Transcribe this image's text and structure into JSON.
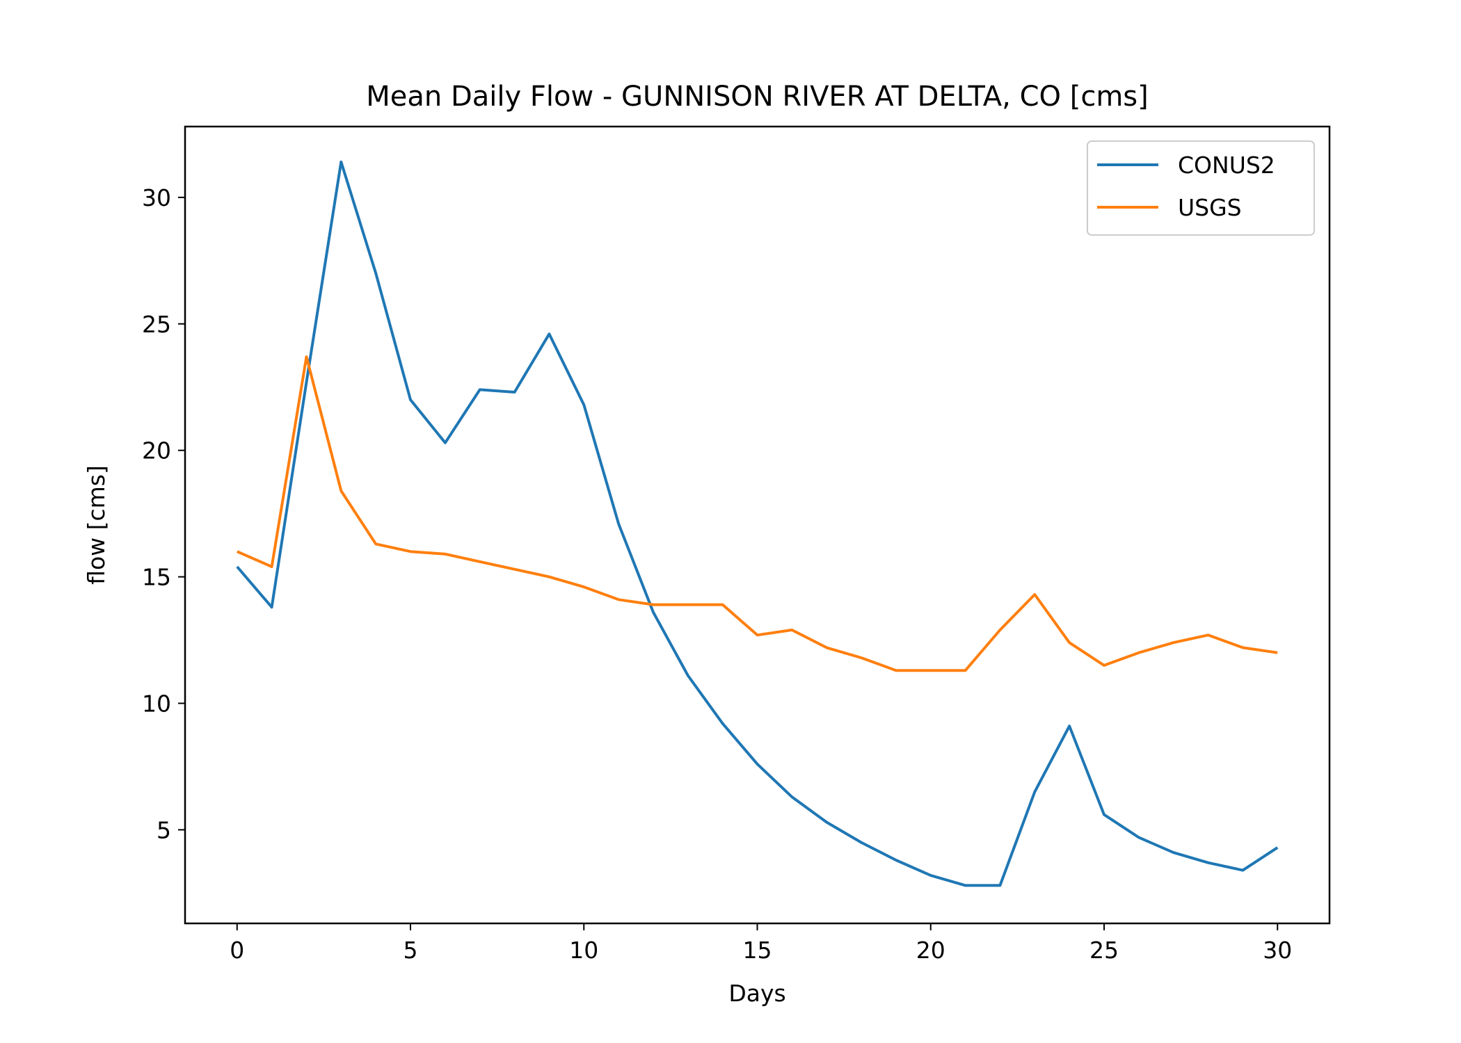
{
  "chart_data": {
    "type": "line",
    "title": "Mean Daily Flow - GUNNISON RIVER AT DELTA, CO [cms]",
    "xlabel": "Days",
    "ylabel": "flow [cms]",
    "xlim": [
      -1.5,
      31.5
    ],
    "ylim": [
      1.3,
      32.8
    ],
    "xticks": [
      0,
      5,
      10,
      15,
      20,
      25,
      30
    ],
    "yticks": [
      5,
      10,
      15,
      20,
      25,
      30
    ],
    "grid": false,
    "legend_position": "upper right",
    "x": [
      0,
      1,
      2,
      3,
      4,
      5,
      6,
      7,
      8,
      9,
      10,
      11,
      12,
      13,
      14,
      15,
      16,
      17,
      18,
      19,
      20,
      21,
      22,
      23,
      24,
      25,
      26,
      27,
      28,
      29,
      30
    ],
    "series": [
      {
        "name": "CONUS2",
        "color": "#1f77b4",
        "values": [
          15.4,
          13.8,
          22.7,
          31.4,
          27.0,
          22.0,
          20.3,
          22.4,
          22.3,
          24.6,
          21.8,
          17.1,
          13.6,
          11.1,
          9.2,
          7.6,
          6.3,
          5.3,
          4.5,
          3.8,
          3.2,
          2.8,
          2.8,
          6.5,
          9.1,
          5.6,
          4.7,
          4.1,
          3.7,
          3.4,
          4.3
        ]
      },
      {
        "name": "USGS",
        "color": "#ff7f0e",
        "values": [
          16.0,
          15.4,
          23.7,
          18.4,
          16.3,
          16.0,
          15.9,
          15.6,
          15.3,
          15.0,
          14.6,
          14.1,
          13.9,
          13.9,
          13.9,
          12.7,
          12.9,
          12.2,
          11.8,
          11.3,
          11.3,
          11.3,
          12.9,
          14.3,
          12.4,
          11.5,
          12.0,
          12.4,
          12.7,
          12.2,
          12.0
        ]
      }
    ]
  }
}
